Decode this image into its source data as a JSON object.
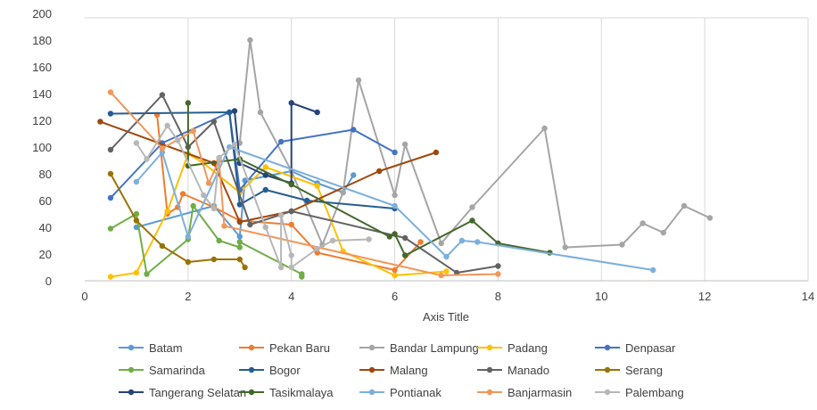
{
  "chart_data": {
    "type": "scatter",
    "title": "",
    "xlabel": "Axis Title",
    "ylabel": "",
    "xlim": [
      0,
      14
    ],
    "ylim": [
      0,
      200
    ],
    "x_ticks": [
      "0",
      "2",
      "4",
      "6",
      "8",
      "10",
      "12",
      "14"
    ],
    "y_ticks": [
      "0",
      "20",
      "40",
      "60",
      "80",
      "100",
      "120",
      "140",
      "160",
      "180",
      "200"
    ],
    "grid": "vertical",
    "legend_position": "bottom",
    "series": [
      {
        "name": "Batam",
        "color": "#5b9bd5",
        "points": [
          [
            1,
            40
          ],
          [
            2.5,
            56
          ],
          [
            3,
            33
          ],
          [
            3.1,
            75
          ],
          [
            4,
            82
          ],
          [
            4.5,
            73
          ],
          [
            5,
            66
          ],
          [
            5.2,
            79
          ]
        ]
      },
      {
        "name": "Pekan Baru",
        "color": "#ed7d31",
        "points": [
          [
            1.4,
            124
          ],
          [
            1.6,
            50
          ],
          [
            1.8,
            55
          ],
          [
            1.9,
            65
          ],
          [
            2.5,
            55
          ],
          [
            3,
            45
          ],
          [
            4,
            42
          ],
          [
            4.5,
            21
          ],
          [
            6,
            8
          ],
          [
            6.5,
            29
          ]
        ]
      },
      {
        "name": "Bandar Lampung",
        "color": "#a5a5a5",
        "points": [
          [
            3,
            103
          ],
          [
            3.2,
            180
          ],
          [
            3.4,
            126
          ],
          [
            4,
            82
          ],
          [
            4.6,
            27
          ],
          [
            5,
            66
          ],
          [
            5.3,
            150
          ],
          [
            6,
            64
          ],
          [
            6.2,
            102
          ],
          [
            6.9,
            28
          ],
          [
            7.5,
            55
          ],
          [
            8.9,
            114
          ],
          [
            9.3,
            25
          ],
          [
            10.4,
            27
          ],
          [
            10.8,
            43
          ],
          [
            11.2,
            36
          ],
          [
            11.6,
            56
          ],
          [
            12.1,
            47
          ]
        ]
      },
      {
        "name": "Padang",
        "color": "#ffc000",
        "points": [
          [
            0.5,
            3
          ],
          [
            1,
            6
          ],
          [
            1.6,
            52
          ],
          [
            2,
            95
          ],
          [
            2.3,
            88
          ],
          [
            3,
            66
          ],
          [
            3.5,
            85
          ],
          [
            4.5,
            71
          ],
          [
            5,
            22
          ],
          [
            6,
            4
          ],
          [
            7,
            7
          ]
        ]
      },
      {
        "name": "Denpasar",
        "color": "#4472c4",
        "points": [
          [
            0.5,
            62
          ],
          [
            1.5,
            103
          ],
          [
            2.8,
            126
          ],
          [
            3,
            68
          ],
          [
            3.8,
            104
          ],
          [
            5.2,
            113
          ],
          [
            6,
            96
          ]
        ]
      },
      {
        "name": "Samarinda",
        "color": "#70ad47",
        "points": [
          [
            0.5,
            39
          ],
          [
            1,
            50
          ],
          [
            1.2,
            5
          ],
          [
            2,
            31
          ],
          [
            2.1,
            56
          ],
          [
            2.6,
            30
          ],
          [
            3,
            25
          ],
          [
            3,
            29
          ],
          [
            4.2,
            5
          ],
          [
            4.2,
            3
          ]
        ]
      },
      {
        "name": "Bogor",
        "color": "#255e91",
        "points": [
          [
            0.5,
            125
          ],
          [
            2.8,
            126
          ],
          [
            3,
            57
          ],
          [
            3.5,
            68
          ],
          [
            4.3,
            60
          ],
          [
            6,
            54
          ]
        ]
      },
      {
        "name": "Malang",
        "color": "#9e480e",
        "points": [
          [
            0.3,
            119
          ],
          [
            2.5,
            88
          ],
          [
            3,
            44
          ],
          [
            4,
            52
          ],
          [
            5.7,
            82
          ],
          [
            6.8,
            96
          ]
        ]
      },
      {
        "name": "Manado",
        "color": "#636363",
        "points": [
          [
            0.5,
            98
          ],
          [
            1.5,
            139
          ],
          [
            2,
            100
          ],
          [
            2.5,
            119
          ],
          [
            3.2,
            42
          ],
          [
            4,
            52
          ],
          [
            6.2,
            32
          ],
          [
            7.2,
            6
          ],
          [
            8,
            11
          ]
        ]
      },
      {
        "name": "Serang",
        "color": "#997300",
        "points": [
          [
            0.5,
            80
          ],
          [
            1,
            45
          ],
          [
            1.5,
            26
          ],
          [
            2,
            14
          ],
          [
            2.5,
            16
          ],
          [
            3,
            16
          ],
          [
            3.1,
            10
          ]
        ]
      },
      {
        "name": "Tangerang Selatan",
        "color": "#264478",
        "points": [
          [
            2.9,
            127
          ],
          [
            3,
            88
          ],
          [
            3.5,
            79
          ],
          [
            4,
            73
          ],
          [
            4,
            133
          ],
          [
            4.5,
            126
          ]
        ]
      },
      {
        "name": "Tasikmalaya",
        "color": "#43682b",
        "points": [
          [
            2,
            133
          ],
          [
            2,
            86
          ],
          [
            3,
            91
          ],
          [
            4,
            72
          ],
          [
            5.9,
            33
          ],
          [
            6,
            35
          ],
          [
            6.2,
            19
          ],
          [
            7.5,
            45
          ],
          [
            8,
            28
          ],
          [
            9,
            21
          ]
        ]
      },
      {
        "name": "Pontianak",
        "color": "#7cafdd",
        "points": [
          [
            1,
            74
          ],
          [
            1.5,
            96
          ],
          [
            2,
            33
          ],
          [
            2.8,
            100
          ],
          [
            6,
            56
          ],
          [
            7,
            18
          ],
          [
            7.3,
            30
          ],
          [
            7.6,
            29
          ],
          [
            11,
            8
          ]
        ]
      },
      {
        "name": "Banjarmasin",
        "color": "#f1975a",
        "points": [
          [
            0.5,
            141
          ],
          [
            1.5,
            99
          ],
          [
            2.1,
            112
          ],
          [
            2.4,
            73
          ],
          [
            2.6,
            90
          ],
          [
            2.7,
            41
          ],
          [
            6.9,
            4
          ],
          [
            8,
            5
          ]
        ]
      },
      {
        "name": "Palembang",
        "color": "#b7b7b7",
        "points": [
          [
            1,
            103
          ],
          [
            1.2,
            91
          ],
          [
            1.6,
            116
          ],
          [
            1.8,
            105
          ],
          [
            2.3,
            64
          ],
          [
            2.5,
            54
          ],
          [
            2.6,
            92
          ],
          [
            2.9,
            102
          ],
          [
            3.5,
            40
          ],
          [
            3.8,
            10
          ],
          [
            3.8,
            49
          ],
          [
            4,
            19
          ],
          [
            4,
            10
          ],
          [
            4.5,
            24
          ],
          [
            4.8,
            30
          ],
          [
            5.5,
            31
          ]
        ]
      }
    ]
  }
}
